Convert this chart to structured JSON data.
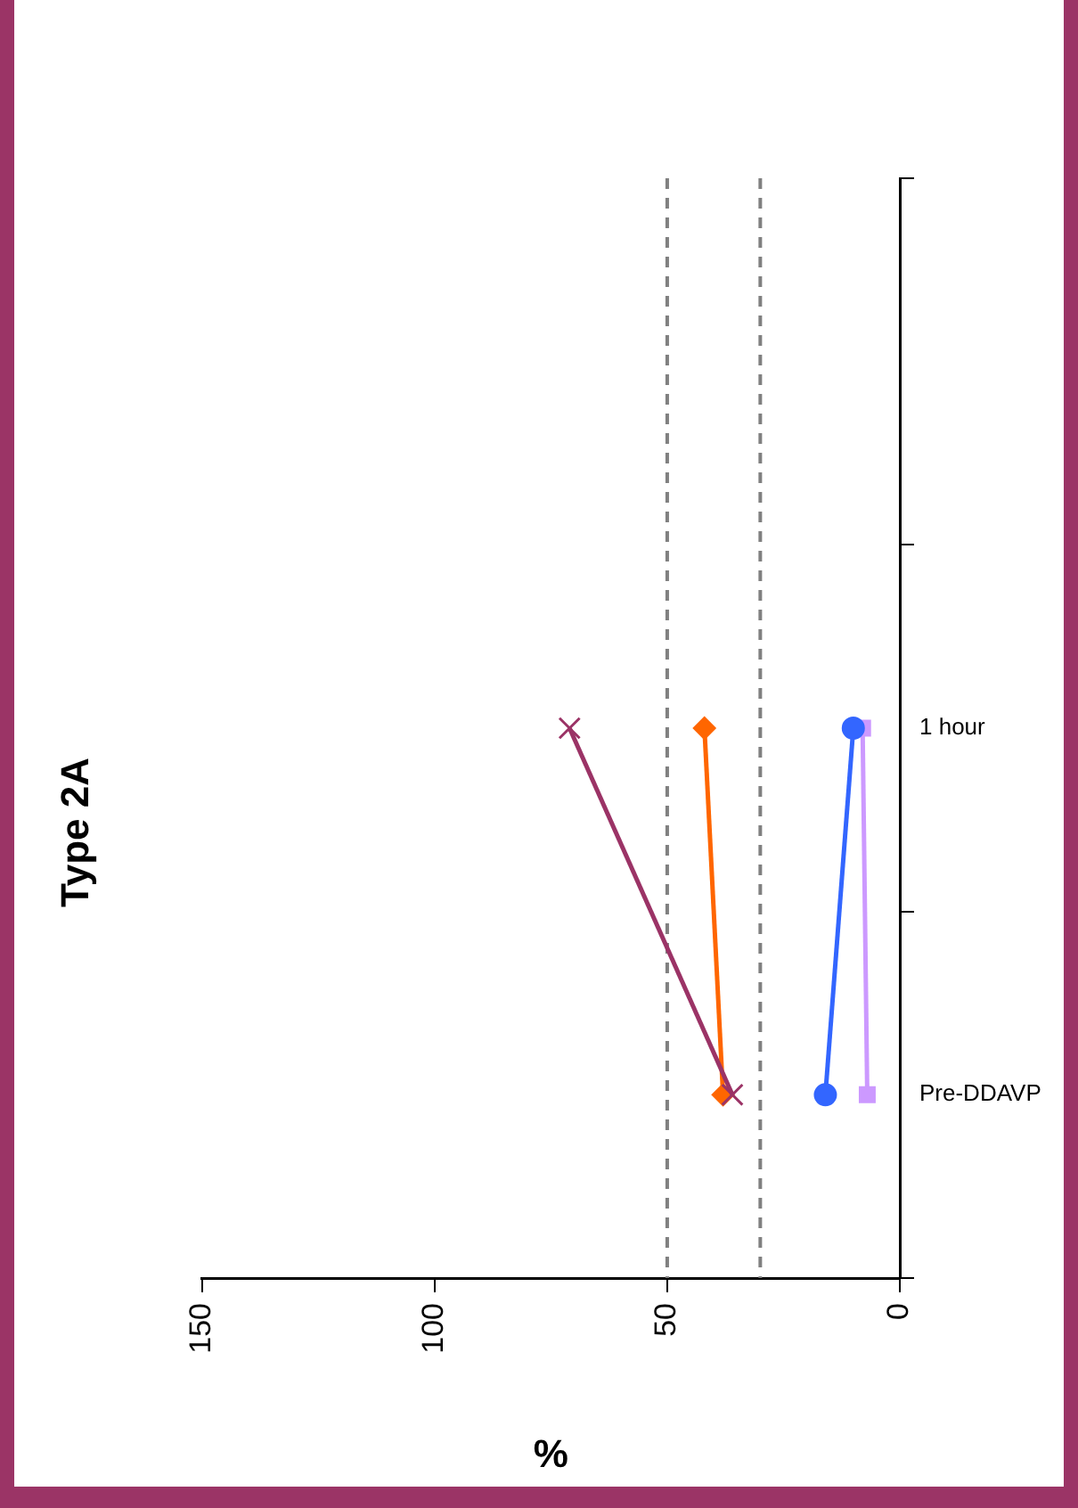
{
  "chart_data": {
    "type": "line",
    "orientation": "horizontal",
    "title": "Type 2A",
    "xlabel": "%",
    "categories": [
      null,
      "1 hour",
      "Pre-DDAVP"
    ],
    "series": [
      {
        "color": "#9b3366",
        "marker": "cross",
        "values": [
          null,
          71,
          36
        ]
      },
      {
        "color": "#ff6600",
        "marker": "diamond",
        "values": [
          null,
          42,
          38
        ]
      },
      {
        "color": "#3366ff",
        "marker": "circle",
        "values": [
          null,
          10,
          16
        ]
      },
      {
        "color": "#cc99ff",
        "marker": "square",
        "values": [
          null,
          8,
          7
        ]
      }
    ],
    "xlim": [
      150,
      0
    ],
    "xticks": [
      150,
      100,
      50,
      0
    ],
    "ref_lines": [
      {
        "axis": "x",
        "value": 50,
        "color": "#808080",
        "line_style": "dashed"
      },
      {
        "axis": "x",
        "value": 30,
        "color": "#808080",
        "line_style": "dashed"
      }
    ]
  }
}
